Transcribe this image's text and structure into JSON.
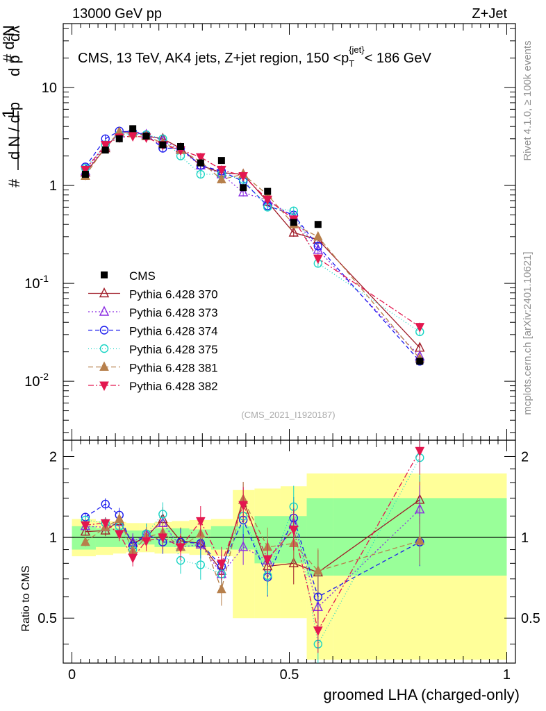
{
  "header": {
    "left": "13000 GeV pp",
    "right": "Z+Jet"
  },
  "side_labels": {
    "rivet": "Rivet 4.1.0, ≥ 100k events",
    "mcplots": "mcplots.cern.ch [arXiv:2401.10621]"
  },
  "chart_data": {
    "type": "scatter",
    "title": "CMS, 13 TeV, AK4 jets, Z+jet region, 150 <p_T^{jet}< 186 GeV",
    "analysis_tag": "(CMS_2021_I1920187)",
    "xlabel": "groomed LHA (charged-only)",
    "ylabel": "1/dN/dp_T · d²N/dp_T dλ",
    "ratio_ylabel": "Ratio to CMS",
    "xlim": [
      -0.02,
      1.02
    ],
    "ylim": [
      0.0025,
      45
    ],
    "yscale": "log",
    "ratio_ylim": [
      0.34,
      2.3
    ],
    "x_ticks": [
      "0",
      "0.5",
      "1"
    ],
    "y_ticks": [
      "10^-2",
      "10^-1",
      "1",
      "10"
    ],
    "ratio_ticks": [
      "0.5",
      "1",
      "2"
    ],
    "bin_edges": [
      0,
      0.055,
      0.095,
      0.125,
      0.155,
      0.19,
      0.23,
      0.27,
      0.32,
      0.37,
      0.42,
      0.48,
      0.54,
      0.6,
      1.0
    ],
    "x": [
      0.031,
      0.077,
      0.109,
      0.14,
      0.171,
      0.209,
      0.25,
      0.296,
      0.344,
      0.394,
      0.45,
      0.51,
      0.566,
      0.8
    ],
    "band_inner": [
      [
        0.9,
        1.1
      ],
      [
        0.92,
        1.08
      ],
      [
        0.92,
        1.08
      ],
      [
        0.94,
        1.06
      ],
      [
        0.94,
        1.06
      ],
      [
        0.92,
        1.08
      ],
      [
        0.92,
        1.08
      ],
      [
        0.92,
        1.07
      ],
      [
        0.9,
        1.1
      ],
      [
        0.9,
        1.1
      ],
      [
        0.8,
        1.2
      ],
      [
        0.8,
        1.2
      ],
      [
        0.72,
        1.4
      ],
      [
        0.72,
        1.4
      ]
    ],
    "band_outer": [
      [
        0.85,
        1.17
      ],
      [
        0.86,
        1.15
      ],
      [
        0.87,
        1.14
      ],
      [
        0.88,
        1.13
      ],
      [
        0.88,
        1.13
      ],
      [
        0.87,
        1.14
      ],
      [
        0.87,
        1.15
      ],
      [
        0.86,
        1.16
      ],
      [
        0.85,
        1.17
      ],
      [
        0.5,
        1.5
      ],
      [
        0.5,
        1.52
      ],
      [
        0.5,
        1.55
      ],
      [
        0.35,
        1.73
      ],
      [
        0.35,
        1.73
      ]
    ],
    "cms": {
      "name": "CMS",
      "values": [
        1.3,
        2.3,
        3.0,
        3.8,
        3.2,
        2.6,
        2.5,
        1.7,
        1.8,
        0.95,
        0.87,
        0.42,
        0.4,
        0.016
      ]
    },
    "series": [
      {
        "name": "Pythia 6.428 370",
        "color": "#a01c28",
        "marker": "triangle-open",
        "dash": "",
        "values": [
          1.35,
          2.4,
          3.5,
          3.6,
          3.2,
          3.0,
          2.4,
          1.6,
          1.35,
          1.3,
          0.68,
          0.33,
          0.28,
          0.022
        ],
        "ratio": [
          1.05,
          1.06,
          1.15,
          0.95,
          1.0,
          1.17,
          0.97,
          0.95,
          0.75,
          1.38,
          0.78,
          0.8,
          0.74,
          1.38
        ]
      },
      {
        "name": "Pythia 6.428 373",
        "color": "#8a2be2",
        "marker": "triangle-open",
        "dash": "2,3",
        "values": [
          1.4,
          2.5,
          3.4,
          3.6,
          3.3,
          2.9,
          2.3,
          1.6,
          1.3,
          0.85,
          0.7,
          0.48,
          0.22,
          0.018
        ],
        "ratio": [
          1.1,
          1.09,
          1.14,
          0.96,
          1.03,
          1.13,
          0.92,
          0.94,
          0.73,
          0.92,
          0.82,
          1.13,
          0.55,
          1.27
        ]
      },
      {
        "name": "Pythia 6.428 374",
        "color": "#1a1aee",
        "marker": "circle-open",
        "dash": "6,4",
        "values": [
          1.55,
          3.0,
          3.6,
          3.5,
          3.3,
          2.4,
          2.4,
          1.6,
          1.4,
          1.1,
          0.62,
          0.5,
          0.24,
          0.016
        ],
        "ratio": [
          1.19,
          1.33,
          1.21,
          0.93,
          1.03,
          0.96,
          0.96,
          0.95,
          0.78,
          1.16,
          0.71,
          1.18,
          0.6,
          0.96
        ]
      },
      {
        "name": "Pythia 6.428 375",
        "color": "#17d4c4",
        "marker": "circle-open",
        "dash": "1,3",
        "values": [
          1.5,
          2.6,
          3.3,
          3.4,
          3.3,
          3.0,
          2.0,
          1.3,
          1.3,
          1.15,
          0.6,
          0.55,
          0.16,
          0.032
        ],
        "ratio": [
          1.16,
          1.13,
          1.1,
          0.9,
          1.03,
          1.22,
          0.82,
          0.79,
          0.73,
          1.2,
          0.72,
          1.3,
          0.4,
          1.98
        ]
      },
      {
        "name": "Pythia 6.428 381",
        "color": "#b7804c",
        "marker": "triangle-filled",
        "dash": "7,4",
        "values": [
          1.25,
          2.5,
          3.5,
          3.4,
          3.2,
          2.7,
          2.3,
          1.75,
          1.15,
          1.3,
          0.8,
          0.4,
          0.3,
          0.017
        ],
        "ratio": [
          0.96,
          1.09,
          1.17,
          0.89,
          1.0,
          1.04,
          0.92,
          1.03,
          0.64,
          1.38,
          0.92,
          0.95,
          0.75,
          0.97
        ]
      },
      {
        "name": "Pythia 6.428 382",
        "color": "#e3174f",
        "marker": "triangle-down-filled",
        "dash": "8,3,2,3",
        "values": [
          1.45,
          2.6,
          3.1,
          3.2,
          3.1,
          2.6,
          2.3,
          1.95,
          1.45,
          1.25,
          0.72,
          0.45,
          0.18,
          0.036
        ],
        "ratio": [
          1.11,
          1.13,
          1.03,
          0.84,
          0.97,
          1.0,
          0.92,
          1.15,
          0.8,
          1.32,
          0.83,
          1.07,
          0.45,
          2.1
        ]
      }
    ]
  }
}
